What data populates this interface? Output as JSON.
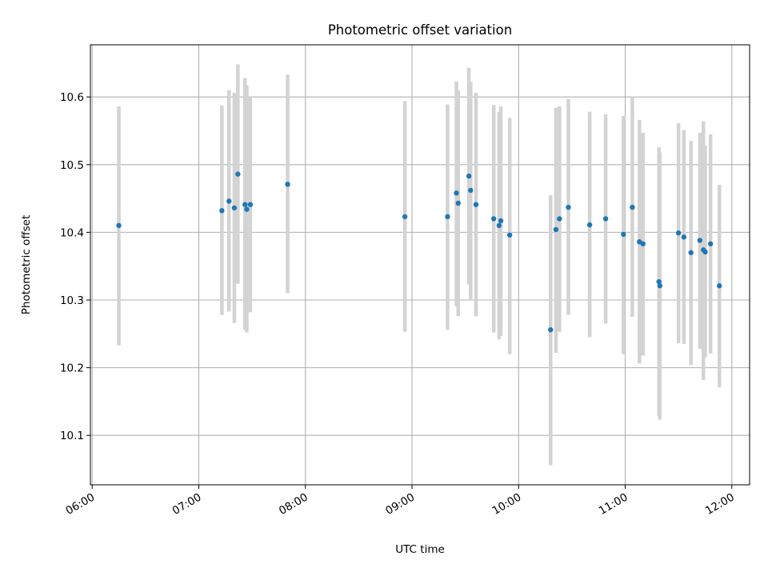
{
  "chart_data": {
    "type": "scatter",
    "title": "Photometric offset variation",
    "xlabel": "UTC time",
    "ylabel": "Photometric offset",
    "xlim": [
      "05:59",
      "12:10"
    ],
    "ylim": [
      10.027,
      10.677
    ],
    "x_ticks": [
      "06:00",
      "07:00",
      "08:00",
      "09:00",
      "10:00",
      "11:00",
      "12:00"
    ],
    "y_ticks": [
      "10.1",
      "10.2",
      "10.3",
      "10.4",
      "10.5",
      "10.6"
    ],
    "grid": true,
    "colors": {
      "points": "#1f77b4",
      "error_bars": "#d3d3d3",
      "grid": "#b0b0b0"
    },
    "series": [
      {
        "points": [
          {
            "x": "06:15",
            "y": 10.41,
            "ylow": 10.233,
            "yhigh": 10.586
          },
          {
            "x": "07:13",
            "y": 10.432,
            "ylow": 10.278,
            "yhigh": 10.587
          },
          {
            "x": "07:17",
            "y": 10.446,
            "ylow": 10.283,
            "yhigh": 10.61
          },
          {
            "x": "07:20",
            "y": 10.436,
            "ylow": 10.266,
            "yhigh": 10.606
          },
          {
            "x": "07:22",
            "y": 10.486,
            "ylow": 10.324,
            "yhigh": 10.648
          },
          {
            "x": "07:26",
            "y": 10.441,
            "ylow": 10.256,
            "yhigh": 10.628
          },
          {
            "x": "07:27",
            "y": 10.434,
            "ylow": 10.252,
            "yhigh": 10.617
          },
          {
            "x": "07:29",
            "y": 10.441,
            "ylow": 10.282,
            "yhigh": 10.601
          },
          {
            "x": "07:50",
            "y": 10.471,
            "ylow": 10.31,
            "yhigh": 10.633
          },
          {
            "x": "08:56",
            "y": 10.423,
            "ylow": 10.253,
            "yhigh": 10.594
          },
          {
            "x": "09:20",
            "y": 10.423,
            "ylow": 10.256,
            "yhigh": 10.589
          },
          {
            "x": "09:25",
            "y": 10.458,
            "ylow": 10.291,
            "yhigh": 10.623
          },
          {
            "x": "09:26",
            "y": 10.443,
            "ylow": 10.276,
            "yhigh": 10.61
          },
          {
            "x": "09:32",
            "y": 10.483,
            "ylow": 10.323,
            "yhigh": 10.643
          },
          {
            "x": "09:33",
            "y": 10.462,
            "ylow": 10.301,
            "yhigh": 10.622
          },
          {
            "x": "09:36",
            "y": 10.441,
            "ylow": 10.276,
            "yhigh": 10.606
          },
          {
            "x": "09:46",
            "y": 10.42,
            "ylow": 10.252,
            "yhigh": 10.588
          },
          {
            "x": "09:49",
            "y": 10.41,
            "ylow": 10.242,
            "yhigh": 10.578
          },
          {
            "x": "09:50",
            "y": 10.417,
            "ylow": 10.247,
            "yhigh": 10.586
          },
          {
            "x": "09:55",
            "y": 10.396,
            "ylow": 10.22,
            "yhigh": 10.569
          },
          {
            "x": "10:18",
            "y": 10.256,
            "ylow": 10.056,
            "yhigh": 10.455
          },
          {
            "x": "10:21",
            "y": 10.404,
            "ylow": 10.222,
            "yhigh": 10.584
          },
          {
            "x": "10:23",
            "y": 10.42,
            "ylow": 10.253,
            "yhigh": 10.586
          },
          {
            "x": "10:28",
            "y": 10.437,
            "ylow": 10.278,
            "yhigh": 10.597
          },
          {
            "x": "10:40",
            "y": 10.411,
            "ylow": 10.245,
            "yhigh": 10.578
          },
          {
            "x": "10:49",
            "y": 10.42,
            "ylow": 10.265,
            "yhigh": 10.574
          },
          {
            "x": "10:59",
            "y": 10.397,
            "ylow": 10.22,
            "yhigh": 10.572
          },
          {
            "x": "11:04",
            "y": 10.437,
            "ylow": 10.275,
            "yhigh": 10.6
          },
          {
            "x": "11:08",
            "y": 10.386,
            "ylow": 10.206,
            "yhigh": 10.566
          },
          {
            "x": "11:10",
            "y": 10.383,
            "ylow": 10.218,
            "yhigh": 10.547
          },
          {
            "x": "11:19",
            "y": 10.327,
            "ylow": 10.128,
            "yhigh": 10.526
          },
          {
            "x": "11:19:30",
            "y": 10.321,
            "ylow": 10.123,
            "yhigh": 10.518
          },
          {
            "x": "11:30",
            "y": 10.399,
            "ylow": 10.236,
            "yhigh": 10.561
          },
          {
            "x": "11:33",
            "y": 10.393,
            "ylow": 10.235,
            "yhigh": 10.551
          },
          {
            "x": "11:37",
            "y": 10.37,
            "ylow": 10.204,
            "yhigh": 10.535
          },
          {
            "x": "11:42",
            "y": 10.388,
            "ylow": 10.228,
            "yhigh": 10.547
          },
          {
            "x": "11:44",
            "y": 10.374,
            "ylow": 10.182,
            "yhigh": 10.564
          },
          {
            "x": "11:45",
            "y": 10.371,
            "ylow": 10.215,
            "yhigh": 10.528
          },
          {
            "x": "11:48",
            "y": 10.383,
            "ylow": 10.221,
            "yhigh": 10.545
          },
          {
            "x": "11:53",
            "y": 10.321,
            "ylow": 10.171,
            "yhigh": 10.47
          }
        ]
      }
    ]
  }
}
